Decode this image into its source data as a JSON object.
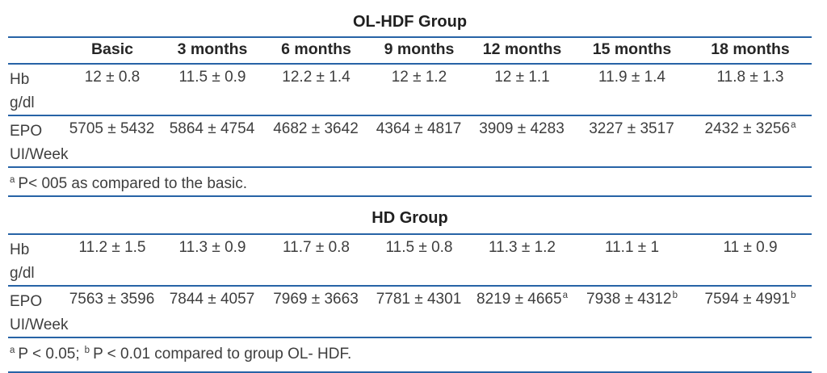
{
  "colors": {
    "rule_line": "#2763a6",
    "body_text": "#3e3e3e",
    "heading_text": "#1f1f1f"
  },
  "table1": {
    "title": "OL-HDF Group",
    "headers": [
      "Basic",
      "3 months",
      "6 months",
      "9 months",
      "12 months",
      "15 months",
      "18 months"
    ],
    "rows": [
      {
        "label": "Hb",
        "unit": "g/dl",
        "values": [
          "12 ± 0.8",
          "11.5 ± 0.9",
          "12.2 ± 1.4",
          "12 ± 1.2",
          "12 ± 1.1",
          "11.9 ± 1.4",
          "11.8 ± 1.3"
        ],
        "sups": [
          "",
          "",
          "",
          "",
          "",
          "",
          ""
        ]
      },
      {
        "label": "EPO",
        "unit": "UI/Week",
        "values": [
          "5705 ± 5432",
          "5864 ± 4754",
          "4682 ± 3642",
          "4364 ± 4817",
          "3909 ± 4283",
          "3227 ± 3517",
          "2432 ± 3256"
        ],
        "sups": [
          "",
          "",
          "",
          "",
          "",
          "",
          "a"
        ]
      }
    ],
    "footnote": {
      "sup1": "a",
      "text1": "P< 005 as compared to the basic."
    }
  },
  "table2": {
    "title": "HD Group",
    "rows": [
      {
        "label": "Hb",
        "unit": "g/dl",
        "values": [
          "11.2 ± 1.5",
          "11.3 ± 0.9",
          "11.7 ± 0.8",
          "11.5 ± 0.8",
          "11.3 ± 1.2",
          "11.1 ± 1",
          "11 ± 0.9"
        ],
        "sups": [
          "",
          "",
          "",
          "",
          "",
          "",
          ""
        ]
      },
      {
        "label": "EPO",
        "unit": "UI/Week",
        "values": [
          "7563 ± 3596",
          "7844 ± 4057",
          "7969 ± 3663",
          "7781 ± 4301",
          "8219 ± 4665",
          "7938 ± 4312",
          "7594 ± 4991"
        ],
        "sups": [
          "",
          "",
          "",
          "",
          "a",
          "b",
          "b"
        ]
      }
    ],
    "footnote": {
      "sup1": "a",
      "text1": "P < 0.05;",
      "sup2": "b",
      "text2": "P < 0.01 compared to group OL- HDF."
    }
  }
}
